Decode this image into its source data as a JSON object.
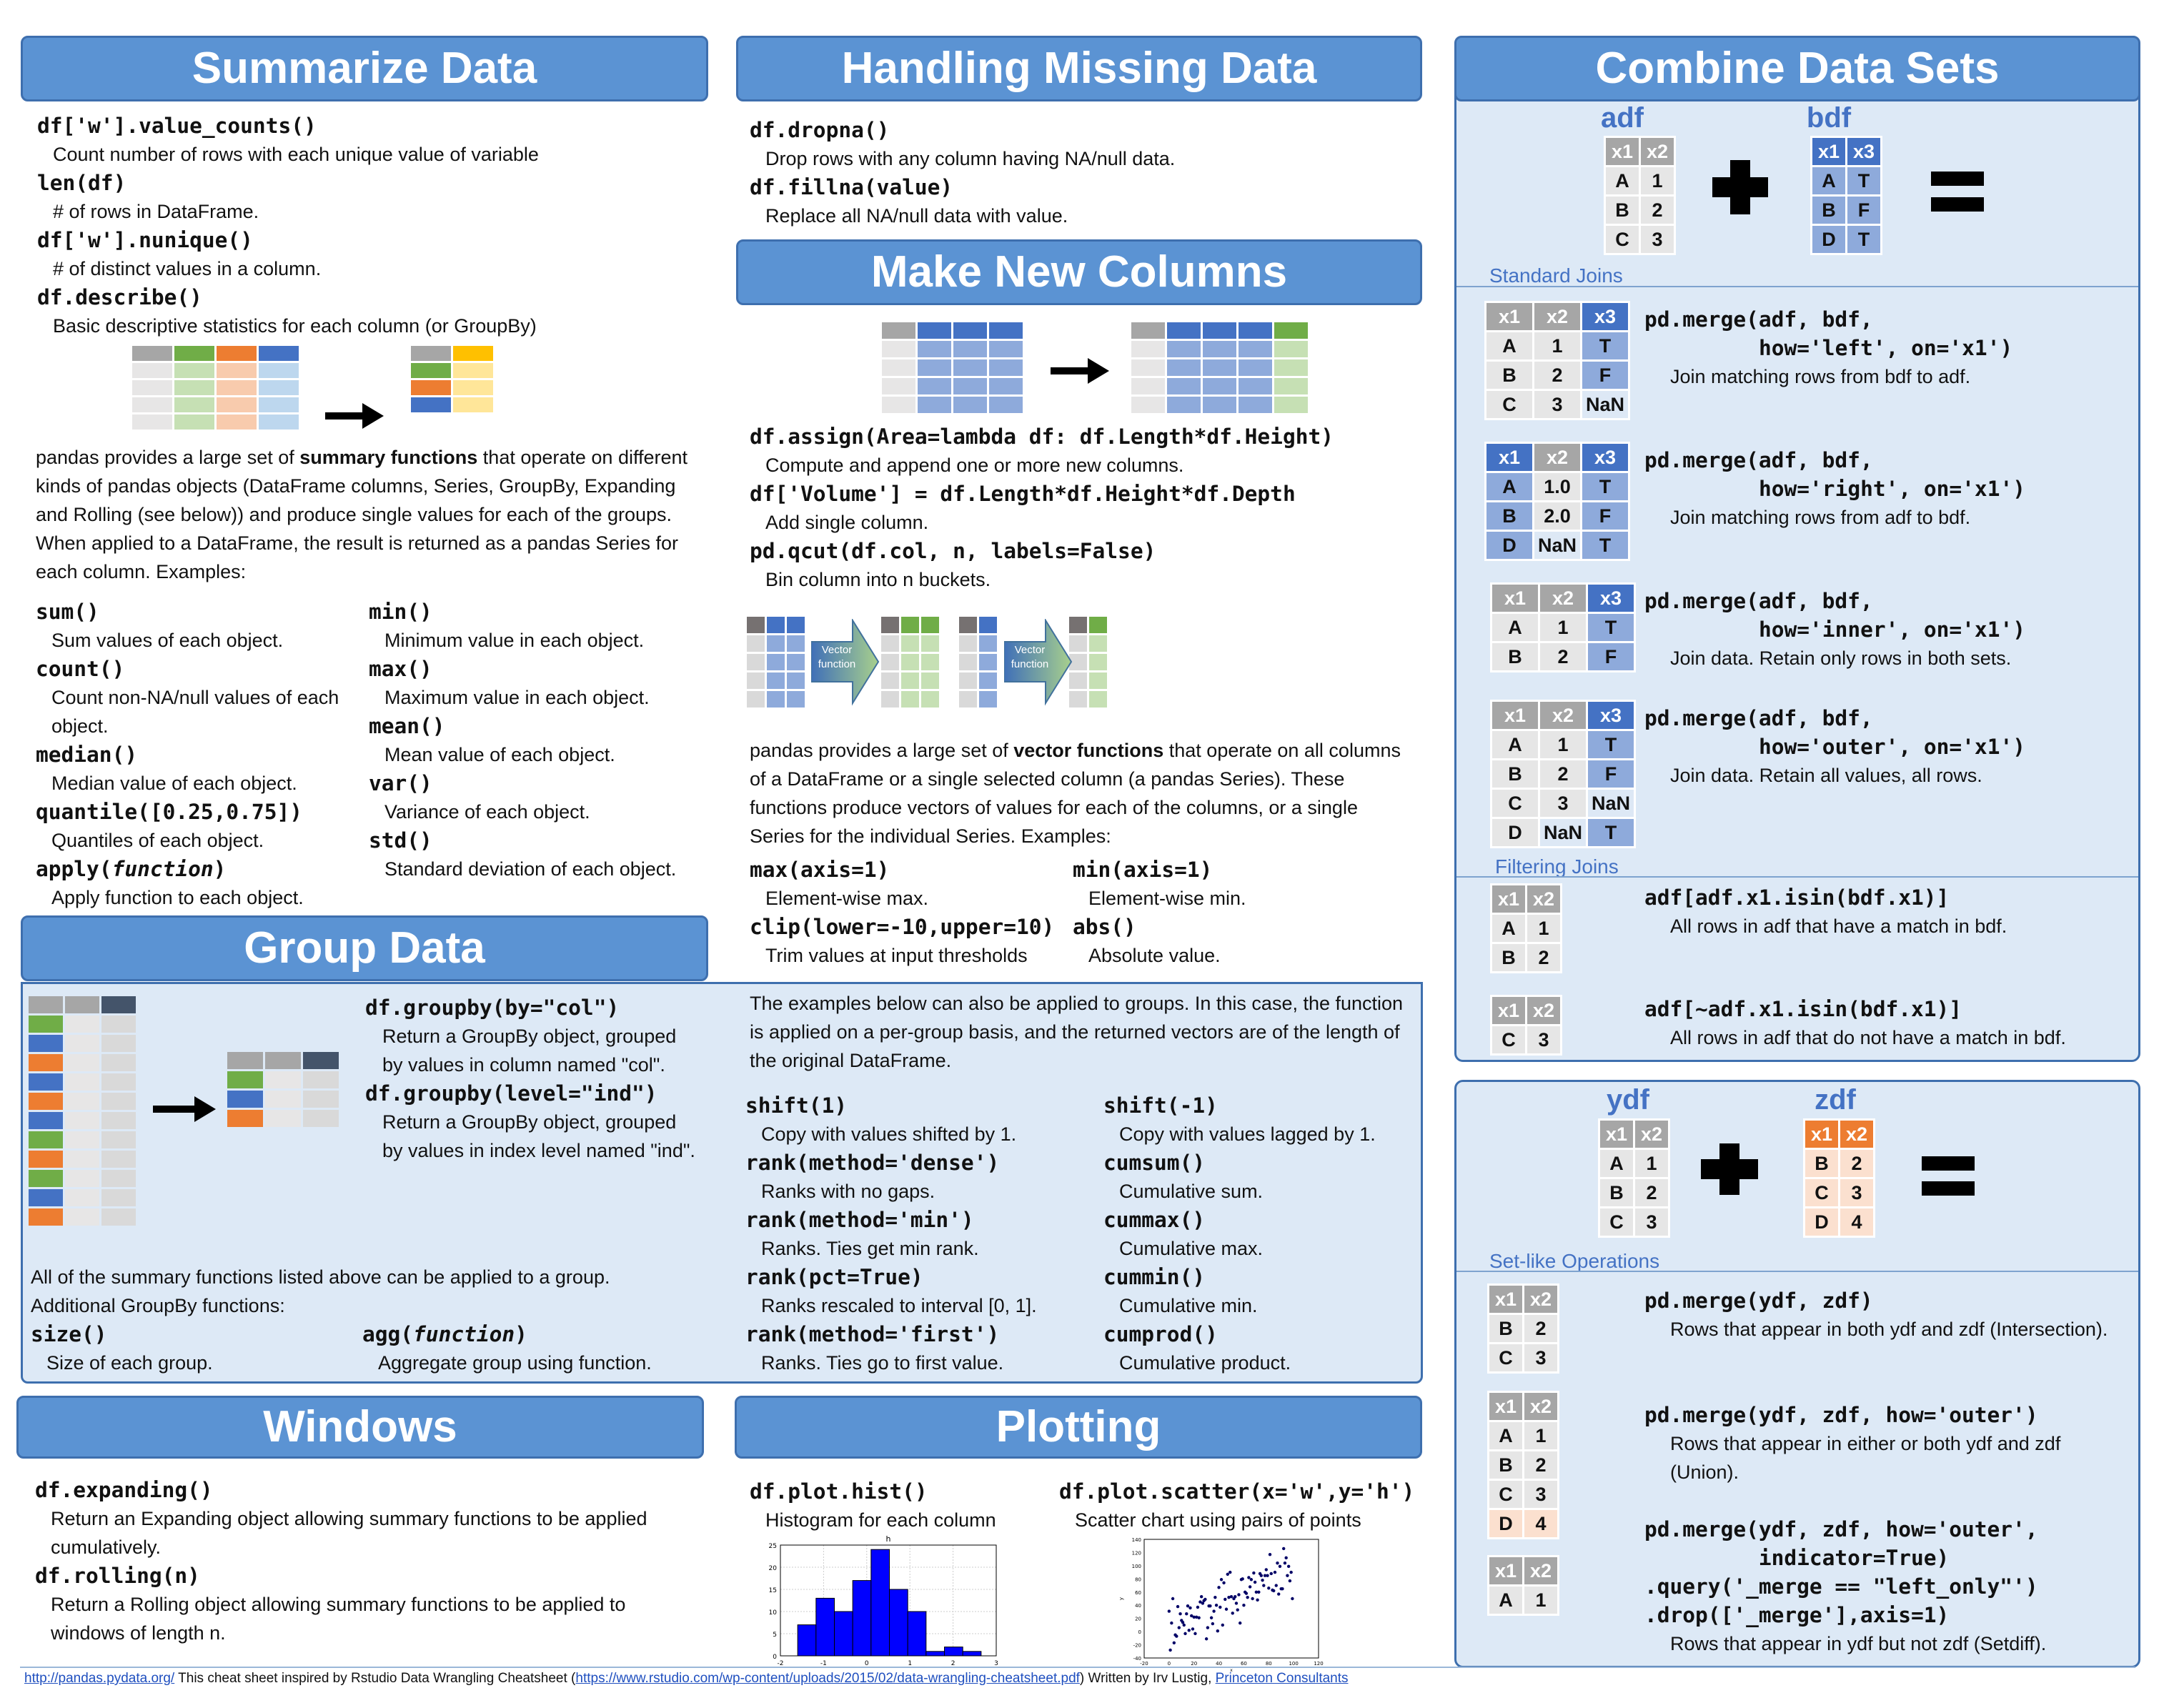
{
  "summarize": {
    "title": "Summarize Data",
    "items": [
      {
        "code": "df['w'].value_counts()",
        "desc": "Count number of rows with each unique value of variable"
      },
      {
        "code": "len(df)",
        "desc": "# of rows in DataFrame."
      },
      {
        "code": "df['w'].nunique()",
        "desc": "# of distinct values in a column."
      },
      {
        "code": "df.describe()",
        "desc": "Basic descriptive statistics for each column (or GroupBy)"
      }
    ],
    "para_pre": "pandas provides a large set of ",
    "para_bold": "summary functions",
    "para_post": " that operate on different kinds of pandas objects (DataFrame columns, Series, GroupBy, Expanding and Rolling (see below)) and produce single values for each of the groups. When applied to a DataFrame, the result is returned as a pandas Series for each column. Examples:",
    "left": [
      {
        "code": "sum()",
        "desc": "Sum values of each object."
      },
      {
        "code": "count()",
        "desc": "Count non-NA/null values of each object."
      },
      {
        "code": "median()",
        "desc": "Median value of each object."
      },
      {
        "code": "quantile([0.25,0.75])",
        "desc": "Quantiles of each object."
      },
      {
        "code": "apply(",
        "code_italic": "function",
        "code_post": ")",
        "desc": "Apply function to each object."
      }
    ],
    "right": [
      {
        "code": "min()",
        "desc": "Minimum value in each object."
      },
      {
        "code": "max()",
        "desc": "Maximum value in each object."
      },
      {
        "code": "mean()",
        "desc": "Mean value of each object."
      },
      {
        "code": "var()",
        "desc": "Variance of each object."
      },
      {
        "code": "std()",
        "desc": "Standard deviation of each object."
      }
    ]
  },
  "group": {
    "title": "Group Data",
    "items": [
      {
        "code": "df.groupby(by=\"col\")",
        "desc": "Return a GroupBy object, grouped by values in column named \"col\"."
      },
      {
        "code": "df.groupby(level=\"ind\")",
        "desc": "Return a GroupBy object, grouped by values in index level named \"ind\"."
      }
    ],
    "note1": "All of the summary functions listed above can be applied to a group.",
    "note2": "Additional GroupBy functions:",
    "extra": [
      {
        "code": "size()",
        "desc": "Size of each group."
      },
      {
        "code": "agg(",
        "code_italic": "function",
        "code_post": ")",
        "desc": "Aggregate group using function."
      }
    ],
    "para": "The examples below can also be applied to groups. In this case, the function is applied on a per-group basis, and the returned vectors are of the length of the original DataFrame.",
    "left": [
      {
        "code": "shift(1)",
        "desc": "Copy with values shifted by 1."
      },
      {
        "code": "rank(method='dense')",
        "desc": "Ranks with no gaps."
      },
      {
        "code": "rank(method='min')",
        "desc": "Ranks. Ties get min rank."
      },
      {
        "code": "rank(pct=True)",
        "desc": "Ranks rescaled to interval [0, 1]."
      },
      {
        "code": "rank(method='first')",
        "desc": "Ranks. Ties go to first value."
      }
    ],
    "right": [
      {
        "code": "shift(-1)",
        "desc": "Copy with values lagged by 1."
      },
      {
        "code": "cumsum()",
        "desc": "Cumulative sum."
      },
      {
        "code": "cummax()",
        "desc": "Cumulative max."
      },
      {
        "code": "cummin()",
        "desc": "Cumulative min."
      },
      {
        "code": "cumprod()",
        "desc": "Cumulative product."
      }
    ]
  },
  "windows": {
    "title": "Windows",
    "items": [
      {
        "code": "df.expanding()",
        "desc": "Return an Expanding object allowing summary functions to be applied cumulatively."
      },
      {
        "code": "df.rolling(n)",
        "desc": "Return a Rolling object allowing summary functions to be applied to windows of length n."
      }
    ]
  },
  "missing": {
    "title": "Handling Missing Data",
    "items": [
      {
        "code": "df.dropna()",
        "desc": "Drop rows with any column having NA/null data."
      },
      {
        "code": "df.fillna(value)",
        "desc": "Replace all NA/null data with value."
      }
    ]
  },
  "newcols": {
    "title": "Make New Columns",
    "items": [
      {
        "code": "df.assign(Area=lambda df: df.Length*df.Height)",
        "desc": "Compute and append one or more new columns."
      },
      {
        "code": "df['Volume'] = df.Length*df.Height*df.Depth",
        "desc": "Add single column."
      },
      {
        "code": "pd.qcut(df.col, n, labels=False)",
        "desc": "Bin column into n buckets."
      }
    ],
    "vector_label": "Vector function",
    "para_pre": "pandas provides a large set of ",
    "para_bold": "vector functions",
    "para_post": " that operate on all columns of a DataFrame or a single selected column (a pandas Series). These functions produce vectors of values for each of the columns, or a single Series for the individual Series. Examples:",
    "left": [
      {
        "code": "max(axis=1)",
        "desc": "Element-wise max."
      },
      {
        "code": "clip(lower=-10,upper=10)",
        "desc": "Trim values at input thresholds"
      }
    ],
    "right": [
      {
        "code": "min(axis=1)",
        "desc": "Element-wise min."
      },
      {
        "code": "abs()",
        "desc": "Absolute value."
      }
    ]
  },
  "plotting": {
    "title": "Plotting",
    "hist": {
      "code": "df.plot.hist()",
      "desc": "Histogram for each column"
    },
    "scatter": {
      "code": "df.plot.scatter(x='w',y='h')",
      "desc": "Scatter chart using pairs of points"
    }
  },
  "chart_data": [
    {
      "type": "bar",
      "title": "h",
      "bin_edges": [
        -1.6,
        -1.175,
        -0.75,
        -0.325,
        0.1,
        0.525,
        0.95,
        1.375,
        1.8,
        2.225,
        2.65
      ],
      "values": [
        7,
        13,
        10,
        17,
        24,
        15,
        10,
        1,
        2,
        1
      ],
      "xlim": [
        -2,
        3
      ],
      "ylim": [
        0,
        25
      ],
      "xticks": [
        "-2",
        "-1",
        "0",
        "1",
        "2",
        "3"
      ],
      "yticks": [
        "0",
        "5",
        "10",
        "15",
        "20",
        "25"
      ],
      "grid": true,
      "color": "#0000ff"
    },
    {
      "type": "scatter",
      "xlabel": "x",
      "ylabel": "y",
      "xlim": [
        -20,
        120
      ],
      "ylim": [
        -40,
        140
      ],
      "xticks": [
        "-20",
        "0",
        "20",
        "40",
        "60",
        "80",
        "100",
        "120"
      ],
      "yticks": [
        "-40",
        "-20",
        "0",
        "20",
        "40",
        "60",
        "80",
        "100",
        "120",
        "140"
      ],
      "color": "#000066",
      "points": [
        [
          0,
          31
        ],
        [
          1,
          -28
        ],
        [
          2,
          13
        ],
        [
          3,
          50
        ],
        [
          4,
          -17
        ],
        [
          5,
          -5
        ],
        [
          6,
          -7
        ],
        [
          7,
          38
        ],
        [
          8,
          6
        ],
        [
          9,
          27
        ],
        [
          10,
          17
        ],
        [
          11,
          14
        ],
        [
          12,
          10
        ],
        [
          13,
          -3
        ],
        [
          14,
          27
        ],
        [
          15,
          39
        ],
        [
          16,
          2
        ],
        [
          17,
          36
        ],
        [
          18,
          24
        ],
        [
          19,
          4
        ],
        [
          20,
          22
        ],
        [
          21,
          -3
        ],
        [
          22,
          22
        ],
        [
          23,
          37
        ],
        [
          24,
          21
        ],
        [
          25,
          45
        ],
        [
          26,
          53
        ],
        [
          27,
          43
        ],
        [
          28,
          47
        ],
        [
          29,
          49
        ],
        [
          30,
          -11
        ],
        [
          31,
          6
        ],
        [
          32,
          39
        ],
        [
          33,
          39
        ],
        [
          34,
          21
        ],
        [
          35,
          12
        ],
        [
          36,
          31
        ],
        [
          37,
          52
        ],
        [
          38,
          40
        ],
        [
          39,
          1
        ],
        [
          40,
          67
        ],
        [
          41,
          37
        ],
        [
          42,
          79
        ],
        [
          43,
          10
        ],
        [
          44,
          74
        ],
        [
          45,
          49
        ],
        [
          46,
          34
        ],
        [
          47,
          87
        ],
        [
          48,
          52
        ],
        [
          49,
          90
        ],
        [
          50,
          53
        ],
        [
          51,
          28
        ],
        [
          52,
          50
        ],
        [
          53,
          53
        ],
        [
          54,
          43
        ],
        [
          55,
          33
        ],
        [
          56,
          56
        ],
        [
          57,
          13
        ],
        [
          58,
          79
        ],
        [
          59,
          80
        ],
        [
          60,
          40
        ],
        [
          61,
          60
        ],
        [
          62,
          58
        ],
        [
          63,
          52
        ],
        [
          64,
          82
        ],
        [
          65,
          68
        ],
        [
          66,
          79
        ],
        [
          67,
          50
        ],
        [
          68,
          89
        ],
        [
          69,
          75
        ],
        [
          70,
          60
        ],
        [
          71,
          48
        ],
        [
          72,
          60
        ],
        [
          73,
          88
        ],
        [
          74,
          85
        ],
        [
          75,
          78
        ],
        [
          76,
          70
        ],
        [
          77,
          85
        ],
        [
          78,
          94
        ],
        [
          79,
          85
        ],
        [
          80,
          66
        ],
        [
          81,
          117
        ],
        [
          82,
          88
        ],
        [
          83,
          63
        ],
        [
          84,
          62
        ],
        [
          85,
          90
        ],
        [
          86,
          70
        ],
        [
          87,
          104
        ],
        [
          88,
          57
        ],
        [
          89,
          99
        ],
        [
          90,
          65
        ],
        [
          91,
          65
        ],
        [
          92,
          126
        ],
        [
          93,
          104
        ],
        [
          94,
          112
        ],
        [
          95,
          85
        ],
        [
          96,
          99
        ],
        [
          97,
          77
        ],
        [
          98,
          90
        ],
        [
          99,
          50
        ]
      ]
    }
  ],
  "combine": {
    "title": "Combine Data Sets",
    "adf": {
      "label": "adf",
      "header": [
        "x1",
        "x2"
      ],
      "rows": [
        [
          "A",
          "1"
        ],
        [
          "B",
          "2"
        ],
        [
          "C",
          "3"
        ]
      ]
    },
    "bdf": {
      "label": "bdf",
      "header": [
        "x1",
        "x3"
      ],
      "rows": [
        [
          "A",
          "T"
        ],
        [
          "B",
          "F"
        ],
        [
          "D",
          "T"
        ]
      ]
    },
    "standard_label": "Standard Joins",
    "joins": [
      {
        "table": {
          "header": [
            "x1",
            "x2",
            "x3"
          ],
          "rows": [
            [
              "A",
              "1",
              "T"
            ],
            [
              "B",
              "2",
              "F"
            ],
            [
              "C",
              "3",
              "NaN"
            ]
          ]
        },
        "code1": "pd.merge(adf, bdf,",
        "code2": "how='left', on='x1')",
        "desc": "Join matching rows from bdf to adf."
      },
      {
        "table": {
          "header": [
            "x1",
            "x2",
            "x3"
          ],
          "rows": [
            [
              "A",
              "1.0",
              "T"
            ],
            [
              "B",
              "2.0",
              "F"
            ],
            [
              "D",
              "NaN",
              "T"
            ]
          ]
        },
        "code1": "pd.merge(adf, bdf,",
        "code2": "how='right', on='x1')",
        "desc": "Join matching rows from adf to bdf."
      },
      {
        "table": {
          "header": [
            "x1",
            "x2",
            "x3"
          ],
          "rows": [
            [
              "A",
              "1",
              "T"
            ],
            [
              "B",
              "2",
              "F"
            ]
          ]
        },
        "code1": "pd.merge(adf, bdf,",
        "code2": "how='inner', on='x1')",
        "desc": "Join data. Retain only rows in both sets."
      },
      {
        "table": {
          "header": [
            "x1",
            "x2",
            "x3"
          ],
          "rows": [
            [
              "A",
              "1",
              "T"
            ],
            [
              "B",
              "2",
              "F"
            ],
            [
              "C",
              "3",
              "NaN"
            ],
            [
              "D",
              "NaN",
              "T"
            ]
          ]
        },
        "code1": "pd.merge(adf, bdf,",
        "code2": "how='outer', on='x1')",
        "desc": "Join data. Retain all values, all rows."
      }
    ],
    "filtering_label": "Filtering Joins",
    "filters": [
      {
        "table": {
          "header": [
            "x1",
            "x2"
          ],
          "rows": [
            [
              "A",
              "1"
            ],
            [
              "B",
              "2"
            ]
          ]
        },
        "code": "adf[adf.x1.isin(bdf.x1)]",
        "desc": "All rows in adf that have a match in bdf."
      },
      {
        "table": {
          "header": [
            "x1",
            "x2"
          ],
          "rows": [
            [
              "C",
              "3"
            ]
          ]
        },
        "code": "adf[~adf.x1.isin(bdf.x1)]",
        "desc": "All rows in adf that do not have a match in bdf."
      }
    ],
    "ydf": {
      "label": "ydf",
      "header": [
        "x1",
        "x2"
      ],
      "rows": [
        [
          "A",
          "1"
        ],
        [
          "B",
          "2"
        ],
        [
          "C",
          "3"
        ]
      ]
    },
    "zdf": {
      "label": "zdf",
      "header": [
        "x1",
        "x2"
      ],
      "rows": [
        [
          "B",
          "2"
        ],
        [
          "C",
          "3"
        ],
        [
          "D",
          "4"
        ]
      ]
    },
    "setlike_label": "Set-like Operations",
    "sets": [
      {
        "table": {
          "header": [
            "x1",
            "x2"
          ],
          "rows": [
            [
              "B",
              "2"
            ],
            [
              "C",
              "3"
            ]
          ]
        },
        "code": [
          "pd.merge(ydf, zdf)"
        ],
        "desc": "Rows that appear in both ydf and zdf (Intersection)."
      },
      {
        "table": {
          "header": [
            "x1",
            "x2"
          ],
          "rows": [
            [
              "A",
              "1"
            ],
            [
              "B",
              "2"
            ],
            [
              "C",
              "3"
            ],
            [
              "D",
              "4"
            ]
          ]
        },
        "code": [
          "pd.merge(ydf, zdf, how='outer')"
        ],
        "desc": "Rows that appear in either or both ydf and zdf (Union)."
      },
      {
        "table": {
          "header": [
            "x1",
            "x2"
          ],
          "rows": [
            [
              "A",
              "1"
            ]
          ]
        },
        "code": [
          "pd.merge(ydf, zdf, how='outer',",
          "         indicator=True)",
          ".query('_merge == \"left_only\"')",
          ".drop(['_merge'],axis=1)"
        ],
        "desc": "Rows that appear in ydf but not zdf (Setdiff)."
      }
    ]
  },
  "footer": {
    "link1": "http://pandas.pydata.org/",
    "text1": " This cheat sheet inspired by Rstudio Data Wrangling Cheatsheet (",
    "link2": "https://www.rstudio.com/wp-content/uploads/2015/02/data-wrangling-cheatsheet.pdf",
    "text2": ") Written by Irv Lustig, ",
    "link3": "Princeton Consultants"
  }
}
